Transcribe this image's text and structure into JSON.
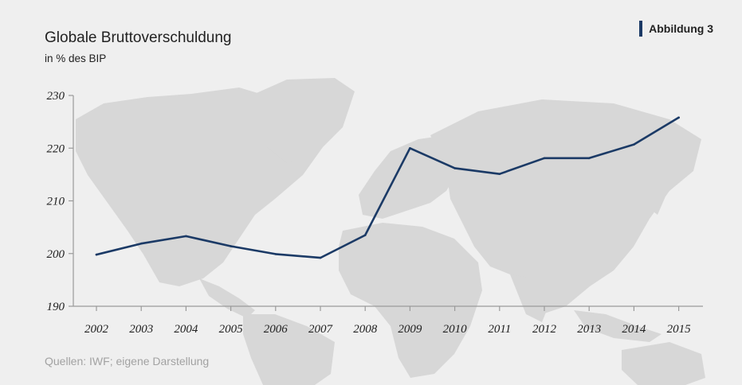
{
  "header": {
    "title": "Globale Bruttoverschuldung",
    "subtitle": "in % des BIP",
    "badge": "Abbildung 3"
  },
  "footer": {
    "source": "Quellen: IWF; eigene Darstellung"
  },
  "colors": {
    "line": "#1b3a66",
    "background": "#efefef",
    "map": "#d7d7d7",
    "axis": "#9a9a9a"
  },
  "chart_data": {
    "type": "line",
    "title": "Globale Bruttoverschuldung",
    "subtitle": "in % des BIP",
    "x": [
      "2002",
      "2003",
      "2004",
      "2005",
      "2006",
      "2007",
      "2008",
      "2009",
      "2010",
      "2011",
      "2012",
      "2013",
      "2014",
      "2015"
    ],
    "series": [
      {
        "values": [
          199.8,
          201.9,
          203.3,
          201.4,
          199.9,
          199.2,
          203.5,
          220.0,
          216.2,
          215.1,
          218.1,
          218.1,
          220.7,
          225.8
        ]
      }
    ],
    "ylim": [
      190,
      230
    ],
    "yticks": [
      190,
      200,
      210,
      220,
      230
    ],
    "grid": false,
    "legend": "none"
  }
}
